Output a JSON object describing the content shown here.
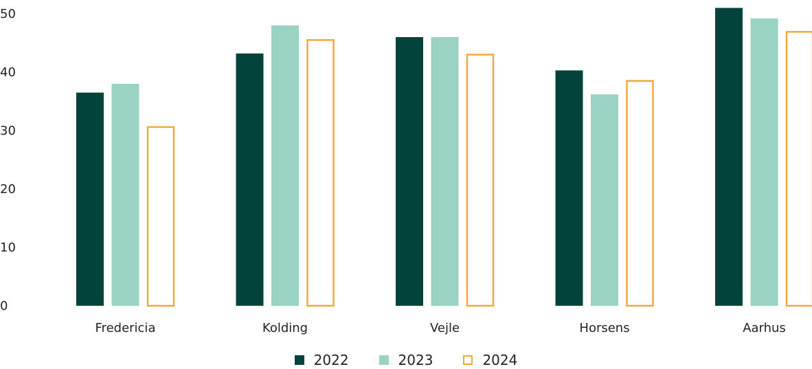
{
  "chart_data": {
    "type": "bar",
    "categories": [
      "Fredericia",
      "Kolding",
      "Vejle",
      "Horsens",
      "Aarhus"
    ],
    "series": [
      {
        "name": "2022",
        "values": [
          36.5,
          43.2,
          46.0,
          40.3,
          51.0
        ],
        "color": "#02433b",
        "style": "filled"
      },
      {
        "name": "2023",
        "values": [
          38.0,
          48.0,
          46.0,
          36.2,
          49.2
        ],
        "color": "#9ad3c4",
        "style": "filled"
      },
      {
        "name": "2024",
        "values": [
          30.6,
          45.5,
          43.0,
          38.5,
          46.9
        ],
        "color": "#f2a93b",
        "style": "outlined"
      }
    ],
    "yticks": [
      "0",
      "10",
      "20",
      "30",
      "40",
      "50"
    ],
    "ylim": [
      0,
      50
    ],
    "grid": false,
    "legend_position": "bottom-center"
  }
}
